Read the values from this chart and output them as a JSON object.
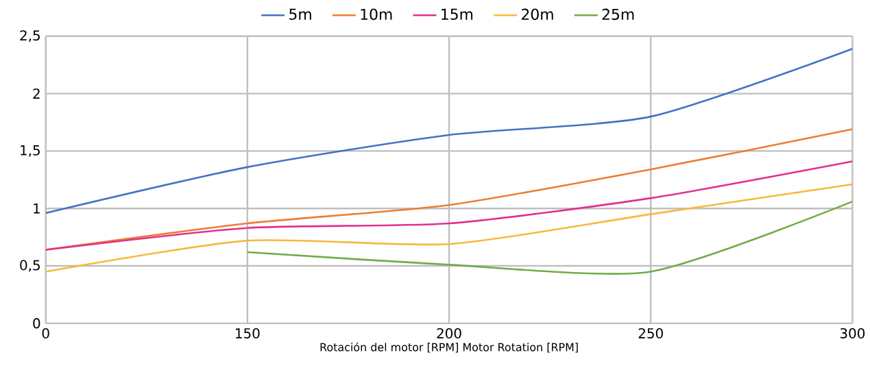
{
  "chart_data": {
    "type": "line",
    "xlabel": "Rotación del motor [RPM]        Motor Rotation [RPM]",
    "categories": [
      "0",
      "150",
      "200",
      "250",
      "300"
    ],
    "series": [
      {
        "name": "5m",
        "color": "#4472c4",
        "values": [
          0.96,
          1.36,
          1.64,
          1.8,
          2.39
        ]
      },
      {
        "name": "10m",
        "color": "#ed7d31",
        "values": [
          0.64,
          0.87,
          1.03,
          1.34,
          1.69
        ]
      },
      {
        "name": "15m",
        "color": "#e0318f",
        "values": [
          0.64,
          0.83,
          0.87,
          1.09,
          1.41
        ]
      },
      {
        "name": "20m",
        "color": "#f6b93b",
        "values": [
          0.45,
          0.72,
          0.69,
          0.95,
          1.21
        ]
      },
      {
        "name": "25m",
        "color": "#70ad47",
        "values": [
          null,
          0.62,
          0.51,
          0.45,
          1.06
        ]
      }
    ],
    "ylim": [
      0,
      2.5
    ],
    "yticks": [
      0,
      {
        "value": 0.5,
        "label": "0,5"
      },
      1,
      {
        "value": 1.5,
        "label": "1,5"
      },
      2,
      {
        "value": 2.5,
        "label": "2,5"
      }
    ],
    "grid": true,
    "legend": "top",
    "marker": "none",
    "line_style": "solid"
  }
}
